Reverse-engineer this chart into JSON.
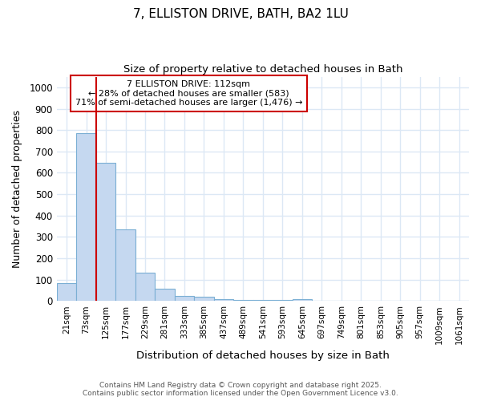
{
  "title1": "7, ELLISTON DRIVE, BATH, BA2 1LU",
  "title2": "Size of property relative to detached houses in Bath",
  "xlabel": "Distribution of detached houses by size in Bath",
  "ylabel": "Number of detached properties",
  "categories": [
    "21sqm",
    "73sqm",
    "125sqm",
    "177sqm",
    "229sqm",
    "281sqm",
    "333sqm",
    "385sqm",
    "437sqm",
    "489sqm",
    "541sqm",
    "593sqm",
    "645sqm",
    "697sqm",
    "749sqm",
    "801sqm",
    "853sqm",
    "905sqm",
    "957sqm",
    "1009sqm",
    "1061sqm"
  ],
  "values": [
    85,
    785,
    648,
    335,
    133,
    57,
    25,
    18,
    10,
    6,
    5,
    5,
    10,
    0,
    0,
    0,
    0,
    0,
    0,
    0,
    0
  ],
  "bar_color": "#c5d8f0",
  "bar_edge_color": "#7bafd4",
  "property_line_index": 2,
  "property_line_color": "#cc0000",
  "annotation_title": "7 ELLISTON DRIVE: 112sqm",
  "annotation_line1": "← 28% of detached houses are smaller (583)",
  "annotation_line2": "71% of semi-detached houses are larger (1,476) →",
  "annotation_box_color": "#cc0000",
  "ylim": [
    0,
    1050
  ],
  "yticks": [
    0,
    100,
    200,
    300,
    400,
    500,
    600,
    700,
    800,
    900,
    1000
  ],
  "footer1": "Contains HM Land Registry data © Crown copyright and database right 2025.",
  "footer2": "Contains public sector information licensed under the Open Government Licence v3.0.",
  "background_color": "#ffffff",
  "grid_color": "#dce8f5",
  "figsize": [
    6.0,
    5.0
  ],
  "dpi": 100
}
